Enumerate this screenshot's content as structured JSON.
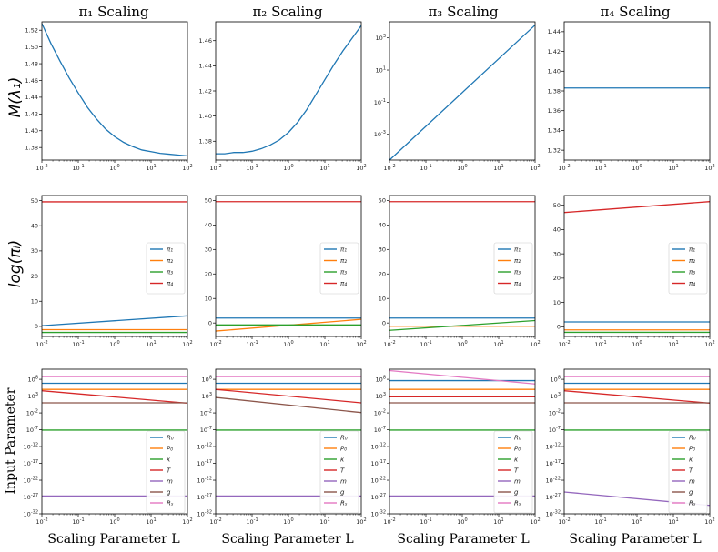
{
  "colors": {
    "blue": "#1f77b4",
    "orange": "#ff7f0e",
    "green": "#2ca02c",
    "red": "#d62728",
    "purple": "#9467bd",
    "brown": "#8c564b",
    "pink": "#e377c2"
  },
  "figure": {
    "column_titles": [
      "π₁ Scaling",
      "π₂ Scaling",
      "π₃ Scaling",
      "π₄ Scaling"
    ],
    "row_ylabels": [
      "M(λ₁)",
      "log(πᵢ)",
      "Input Parameter"
    ],
    "xlabel": "Scaling Parameter L",
    "legend_pi": [
      "π₁",
      "π₂",
      "π₃",
      "π₄"
    ],
    "legend_input": [
      "R₀",
      "P₀",
      "κ",
      "T",
      "m",
      "g",
      "Rₛ"
    ]
  },
  "chart_data": [
    {
      "panel": "r0c0",
      "type": "line",
      "title": "π₁ Scaling",
      "ylabel": "M(λ₁)",
      "xscale": "log",
      "xlim": [
        0.01,
        100
      ],
      "ylim": [
        1.365,
        1.53
      ],
      "yticks": [
        1.38,
        1.4,
        1.42,
        1.44,
        1.46,
        1.48,
        1.5,
        1.52
      ],
      "ytick_labels": [
        "1.38",
        "1.40",
        "1.42",
        "1.44",
        "1.46",
        "1.48",
        "1.50",
        "1.52"
      ],
      "series": [
        {
          "name": "M(λ₁)",
          "color": "blue",
          "x": [
            0.01,
            0.0178,
            0.0316,
            0.0562,
            0.1,
            0.178,
            0.316,
            0.562,
            1,
            1.78,
            3.16,
            5.62,
            10,
            17.8,
            31.6,
            56.2,
            100
          ],
          "y": [
            1.528,
            1.504,
            1.483,
            1.463,
            1.445,
            1.428,
            1.414,
            1.402,
            1.393,
            1.386,
            1.381,
            1.377,
            1.375,
            1.373,
            1.372,
            1.371,
            1.37
          ]
        }
      ]
    },
    {
      "panel": "r0c1",
      "type": "line",
      "title": "π₂ Scaling",
      "xscale": "log",
      "xlim": [
        0.01,
        100
      ],
      "ylim": [
        1.365,
        1.475
      ],
      "yticks": [
        1.38,
        1.4,
        1.42,
        1.44,
        1.46
      ],
      "ytick_labels": [
        "1.38",
        "1.40",
        "1.42",
        "1.44",
        "1.46"
      ],
      "series": [
        {
          "name": "M(λ₁)",
          "color": "blue",
          "x": [
            0.01,
            0.0178,
            0.0316,
            0.0562,
            0.1,
            0.178,
            0.316,
            0.562,
            1,
            1.78,
            3.16,
            5.62,
            10,
            17.8,
            31.6,
            56.2,
            100
          ],
          "y": [
            1.37,
            1.37,
            1.371,
            1.371,
            1.372,
            1.374,
            1.377,
            1.381,
            1.387,
            1.395,
            1.405,
            1.417,
            1.429,
            1.441,
            1.452,
            1.462,
            1.472
          ]
        }
      ]
    },
    {
      "panel": "r0c2",
      "type": "line",
      "title": "π₃ Scaling",
      "xscale": "log",
      "yscale": "log",
      "xlim": [
        0.01,
        100
      ],
      "ylim_exp": [
        -4.6,
        4
      ],
      "yticks_exp": [
        -3,
        -1,
        1,
        3
      ],
      "ytick_labels": [
        "10^-3",
        "10^-1",
        "10^1",
        "10^3"
      ],
      "series": [
        {
          "name": "M(λ₁)",
          "color": "blue",
          "x": [
            0.01,
            100
          ],
          "y": [
            2.5e-05,
            6300
          ]
        }
      ]
    },
    {
      "panel": "r0c3",
      "type": "line",
      "title": "π₄ Scaling",
      "xscale": "log",
      "xlim": [
        0.01,
        100
      ],
      "ylim": [
        1.31,
        1.45
      ],
      "yticks": [
        1.32,
        1.34,
        1.36,
        1.38,
        1.4,
        1.42,
        1.44
      ],
      "ytick_labels": [
        "1.32",
        "1.34",
        "1.36",
        "1.38",
        "1.40",
        "1.42",
        "1.44"
      ],
      "series": [
        {
          "name": "M(λ₁)",
          "color": "blue",
          "x": [
            0.01,
            100
          ],
          "y": [
            1.383,
            1.383
          ]
        }
      ]
    },
    {
      "panel": "r1c0",
      "type": "line",
      "ylabel": "log(πᵢ)",
      "xscale": "log",
      "xlim": [
        0.01,
        100
      ],
      "ylim": [
        -4,
        52
      ],
      "yticks": [
        0,
        10,
        20,
        30,
        40,
        50
      ],
      "ytick_labels": [
        "0",
        "10",
        "20",
        "30",
        "40",
        "50"
      ],
      "series": [
        {
          "name": "π₁",
          "color": "blue",
          "x": [
            0.01,
            100
          ],
          "y": [
            0.3,
            4.2
          ]
        },
        {
          "name": "π₂",
          "color": "orange",
          "x": [
            0.01,
            100
          ],
          "y": [
            -1.3,
            -1.3
          ]
        },
        {
          "name": "π₃",
          "color": "green",
          "x": [
            0.01,
            100
          ],
          "y": [
            -2.4,
            -2.4
          ]
        },
        {
          "name": "π₄",
          "color": "red",
          "x": [
            0.01,
            100
          ],
          "y": [
            49.5,
            49.5
          ]
        }
      ]
    },
    {
      "panel": "r1c1",
      "type": "line",
      "xscale": "log",
      "xlim": [
        0.01,
        100
      ],
      "ylim": [
        -5.5,
        52
      ],
      "yticks": [
        0,
        10,
        20,
        30,
        40,
        50
      ],
      "ytick_labels": [
        "0",
        "10",
        "20",
        "30",
        "40",
        "50"
      ],
      "series": [
        {
          "name": "π₁",
          "color": "blue",
          "x": [
            0.01,
            100
          ],
          "y": [
            2.0,
            2.0
          ]
        },
        {
          "name": "π₂",
          "color": "orange",
          "x": [
            0.01,
            100
          ],
          "y": [
            -3.3,
            1.5
          ]
        },
        {
          "name": "π₃",
          "color": "green",
          "x": [
            0.01,
            100
          ],
          "y": [
            -0.8,
            -0.8
          ]
        },
        {
          "name": "π₄",
          "color": "red",
          "x": [
            0.01,
            100
          ],
          "y": [
            49.5,
            49.5
          ]
        }
      ]
    },
    {
      "panel": "r1c2",
      "type": "line",
      "xscale": "log",
      "xlim": [
        0.01,
        100
      ],
      "ylim": [
        -5.5,
        52
      ],
      "yticks": [
        0,
        10,
        20,
        30,
        40,
        50
      ],
      "ytick_labels": [
        "0",
        "10",
        "20",
        "30",
        "40",
        "50"
      ],
      "series": [
        {
          "name": "π₁",
          "color": "blue",
          "x": [
            0.01,
            100
          ],
          "y": [
            2.0,
            2.0
          ]
        },
        {
          "name": "π₂",
          "color": "orange",
          "x": [
            0.01,
            100
          ],
          "y": [
            -1.3,
            -1.3
          ]
        },
        {
          "name": "π₃",
          "color": "green",
          "x": [
            0.01,
            100
          ],
          "y": [
            -3.0,
            1.0
          ]
        },
        {
          "name": "π₄",
          "color": "red",
          "x": [
            0.01,
            100
          ],
          "y": [
            49.5,
            49.5
          ]
        }
      ]
    },
    {
      "panel": "r1c3",
      "type": "line",
      "xscale": "log",
      "xlim": [
        0.01,
        100
      ],
      "ylim": [
        -4,
        54
      ],
      "yticks": [
        0,
        10,
        20,
        30,
        40,
        50
      ],
      "ytick_labels": [
        "0",
        "10",
        "20",
        "30",
        "40",
        "50"
      ],
      "series": [
        {
          "name": "π₁",
          "color": "blue",
          "x": [
            0.01,
            100
          ],
          "y": [
            2.0,
            2.0
          ]
        },
        {
          "name": "π₂",
          "color": "orange",
          "x": [
            0.01,
            100
          ],
          "y": [
            -1.3,
            -1.3
          ]
        },
        {
          "name": "π₃",
          "color": "green",
          "x": [
            0.01,
            100
          ],
          "y": [
            -2.3,
            -2.3
          ]
        },
        {
          "name": "π₄",
          "color": "red",
          "x": [
            0.01,
            100
          ],
          "y": [
            47.0,
            51.5
          ]
        }
      ]
    },
    {
      "panel": "r2c0",
      "type": "line",
      "ylabel": "Input Parameter",
      "xscale": "log",
      "yscale": "log",
      "xlim": [
        0.01,
        100
      ],
      "ylim_exp": [
        -32,
        11
      ],
      "yticks_exp": [
        -32,
        -27,
        -22,
        -17,
        -12,
        -7,
        -2,
        3,
        8
      ],
      "ytick_labels": [
        "10^-32",
        "10^-27",
        "10^-22",
        "10^-17",
        "10^-12",
        "10^-7",
        "10^-2",
        "10^3",
        "10^8"
      ],
      "series": [
        {
          "name": "R₀",
          "color": "blue",
          "x": [
            0.01,
            100
          ],
          "y_exp": [
            6.8,
            6.8
          ]
        },
        {
          "name": "P₀",
          "color": "orange",
          "x": [
            0.01,
            100
          ],
          "y_exp": [
            5.0,
            5.0
          ]
        },
        {
          "name": "κ",
          "color": "green",
          "x": [
            0.01,
            100
          ],
          "y_exp": [
            -7.1,
            -7.1
          ]
        },
        {
          "name": "T",
          "color": "red",
          "x": [
            0.01,
            100
          ],
          "y_exp": [
            4.6,
            0.9
          ]
        },
        {
          "name": "m",
          "color": "purple",
          "x": [
            0.01,
            100
          ],
          "y_exp": [
            -26.7,
            -26.7
          ]
        },
        {
          "name": "g",
          "color": "brown",
          "x": [
            0.01,
            100
          ],
          "y_exp": [
            1.0,
            1.0
          ]
        },
        {
          "name": "Rₛ",
          "color": "pink",
          "x": [
            0.01,
            100
          ],
          "y_exp": [
            8.8,
            8.8
          ]
        }
      ]
    },
    {
      "panel": "r2c1",
      "type": "line",
      "xscale": "log",
      "yscale": "log",
      "xlim": [
        0.01,
        100
      ],
      "ylim_exp": [
        -32,
        11
      ],
      "yticks_exp": [
        -32,
        -27,
        -22,
        -17,
        -12,
        -7,
        -2,
        3,
        8
      ],
      "ytick_labels": [
        "10^-32",
        "10^-27",
        "10^-22",
        "10^-17",
        "10^-12",
        "10^-7",
        "10^-2",
        "10^3",
        "10^8"
      ],
      "series": [
        {
          "name": "R₀",
          "color": "blue",
          "x": [
            0.01,
            100
          ],
          "y_exp": [
            6.8,
            6.8
          ]
        },
        {
          "name": "P₀",
          "color": "orange",
          "x": [
            0.01,
            100
          ],
          "y_exp": [
            5.0,
            5.0
          ]
        },
        {
          "name": "κ",
          "color": "green",
          "x": [
            0.01,
            100
          ],
          "y_exp": [
            -7.1,
            -7.1
          ]
        },
        {
          "name": "T",
          "color": "red",
          "x": [
            0.01,
            100
          ],
          "y_exp": [
            5.0,
            1.0
          ]
        },
        {
          "name": "m",
          "color": "purple",
          "x": [
            0.01,
            100
          ],
          "y_exp": [
            -26.7,
            -26.7
          ]
        },
        {
          "name": "g",
          "color": "brown",
          "x": [
            0.01,
            100
          ],
          "y_exp": [
            2.6,
            -1.9
          ]
        },
        {
          "name": "Rₛ",
          "color": "pink",
          "x": [
            0.01,
            100
          ],
          "y_exp": [
            8.8,
            8.8
          ]
        }
      ]
    },
    {
      "panel": "r2c2",
      "type": "line",
      "xscale": "log",
      "yscale": "log",
      "xlim": [
        0.01,
        100
      ],
      "ylim_exp": [
        -32,
        11
      ],
      "yticks_exp": [
        -32,
        -27,
        -22,
        -17,
        -12,
        -7,
        -2,
        3,
        8
      ],
      "ytick_labels": [
        "10^-32",
        "10^-27",
        "10^-22",
        "10^-17",
        "10^-12",
        "10^-7",
        "10^-2",
        "10^3",
        "10^8"
      ],
      "series": [
        {
          "name": "R₀",
          "color": "blue",
          "x": [
            0.01,
            100
          ],
          "y_exp": [
            7.6,
            7.6
          ]
        },
        {
          "name": "P₀",
          "color": "orange",
          "x": [
            0.01,
            100
          ],
          "y_exp": [
            5.0,
            5.0
          ]
        },
        {
          "name": "κ",
          "color": "green",
          "x": [
            0.01,
            100
          ],
          "y_exp": [
            -7.1,
            -7.1
          ]
        },
        {
          "name": "T",
          "color": "red",
          "x": [
            0.01,
            100
          ],
          "y_exp": [
            2.8,
            2.8
          ]
        },
        {
          "name": "m",
          "color": "purple",
          "x": [
            0.01,
            100
          ],
          "y_exp": [
            -26.7,
            -26.7
          ]
        },
        {
          "name": "g",
          "color": "brown",
          "x": [
            0.01,
            100
          ],
          "y_exp": [
            1.0,
            1.0
          ]
        },
        {
          "name": "Rₛ",
          "color": "pink",
          "x": [
            0.01,
            100
          ],
          "y_exp": [
            10.6,
            6.6
          ]
        }
      ]
    },
    {
      "panel": "r2c3",
      "type": "line",
      "xscale": "log",
      "yscale": "log",
      "xlim": [
        0.01,
        100
      ],
      "ylim_exp": [
        -32,
        11
      ],
      "yticks_exp": [
        -32,
        -27,
        -22,
        -17,
        -12,
        -7,
        -2,
        3,
        8
      ],
      "ytick_labels": [
        "10^-32",
        "10^-27",
        "10^-22",
        "10^-17",
        "10^-12",
        "10^-7",
        "10^-2",
        "10^3",
        "10^8"
      ],
      "series": [
        {
          "name": "R₀",
          "color": "blue",
          "x": [
            0.01,
            100
          ],
          "y_exp": [
            6.8,
            6.8
          ]
        },
        {
          "name": "P₀",
          "color": "orange",
          "x": [
            0.01,
            100
          ],
          "y_exp": [
            5.0,
            5.0
          ]
        },
        {
          "name": "κ",
          "color": "green",
          "x": [
            0.01,
            100
          ],
          "y_exp": [
            -7.1,
            -7.1
          ]
        },
        {
          "name": "T",
          "color": "red",
          "x": [
            0.01,
            100
          ],
          "y_exp": [
            4.6,
            0.9
          ]
        },
        {
          "name": "m",
          "color": "purple",
          "x": [
            0.01,
            100
          ],
          "y_exp": [
            -25.5,
            -29.5
          ]
        },
        {
          "name": "g",
          "color": "brown",
          "x": [
            0.01,
            100
          ],
          "y_exp": [
            1.0,
            1.0
          ]
        },
        {
          "name": "Rₛ",
          "color": "pink",
          "x": [
            0.01,
            100
          ],
          "y_exp": [
            8.8,
            8.8
          ]
        }
      ]
    }
  ]
}
